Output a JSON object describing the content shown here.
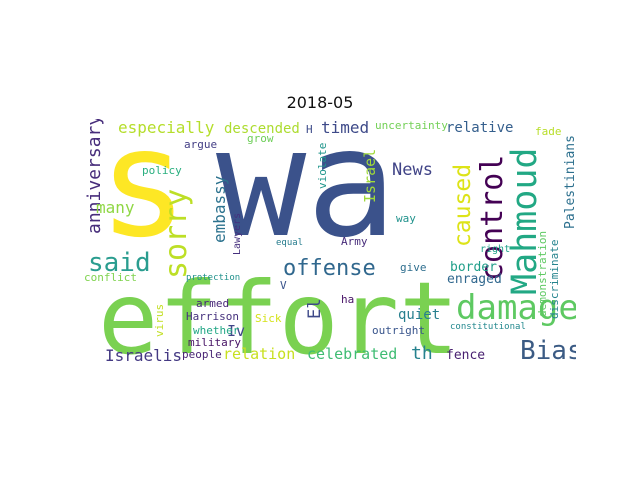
{
  "title": "2018-05",
  "words": [
    {
      "text": "wa",
      "color": "#3b528b",
      "rot": 0
    },
    {
      "text": "s",
      "color": "#fde725",
      "rot": 0
    },
    {
      "text": "effort",
      "color": "#7ad151",
      "rot": 0
    },
    {
      "text": "Mahmoud",
      "color": "#22a884",
      "rot": -90
    },
    {
      "text": "control",
      "color": "#440154",
      "rot": -90
    },
    {
      "text": "damage",
      "color": "#5ec962",
      "rot": 0
    },
    {
      "text": "sorry",
      "color": "#bddf26",
      "rot": -90
    },
    {
      "text": "said",
      "color": "#2a9d8f",
      "rot": 0
    },
    {
      "text": "offense",
      "color": "#31688e",
      "rot": 0
    },
    {
      "text": "Bias",
      "color": "#3b5b84",
      "rot": 0
    },
    {
      "text": "caused",
      "color": "#dde318",
      "rot": -90
    },
    {
      "text": "especially",
      "color": "#b5de2b",
      "rot": 0
    },
    {
      "text": "anniversary",
      "color": "#472d7b",
      "rot": -90
    },
    {
      "text": "many",
      "color": "#8fd744",
      "rot": 0
    },
    {
      "text": "embassy",
      "color": "#2c728e",
      "rot": -90
    },
    {
      "text": "Israel",
      "color": "#a0da39",
      "rot": -90
    },
    {
      "text": "News",
      "color": "#414487",
      "rot": 0
    },
    {
      "text": "timed",
      "color": "#3e4a89",
      "rot": 0
    },
    {
      "text": "descended",
      "color": "#addc30",
      "rot": 0
    },
    {
      "text": "relative",
      "color": "#355f8d",
      "rot": 0
    },
    {
      "text": "uncertainty",
      "color": "#73d056",
      "rot": 0
    },
    {
      "text": "Palestinians",
      "color": "#2d708e",
      "rot": -90
    },
    {
      "text": "demonstration",
      "color": "#5ec962",
      "rot": -90
    },
    {
      "text": "discriminate",
      "color": "#25848e",
      "rot": -90
    },
    {
      "text": "fade",
      "color": "#b8de29",
      "rot": 0
    },
    {
      "text": "Israelis",
      "color": "#443983",
      "rot": 0
    },
    {
      "text": "relation",
      "color": "#c8e020",
      "rot": 0
    },
    {
      "text": "celebrated",
      "color": "#3fbc73",
      "rot": 0
    },
    {
      "text": "th",
      "color": "#26828e",
      "rot": 0
    },
    {
      "text": "fence",
      "color": "#481f70",
      "rot": 0
    },
    {
      "text": "quiet",
      "color": "#277f8e",
      "rot": 0
    },
    {
      "text": "enraged",
      "color": "#31688e",
      "rot": 0
    },
    {
      "text": "border",
      "color": "#1f9e89",
      "rot": 0
    },
    {
      "text": "El",
      "color": "#3e4989",
      "rot": -90
    },
    {
      "text": "Iv",
      "color": "#404688",
      "rot": 0
    },
    {
      "text": "Harrison",
      "color": "#46327e",
      "rot": 0
    },
    {
      "text": "armed",
      "color": "#482878",
      "rot": 0
    },
    {
      "text": "military",
      "color": "#471365",
      "rot": 0
    },
    {
      "text": "whether",
      "color": "#21a685",
      "rot": 0
    },
    {
      "text": "people",
      "color": "#482475",
      "rot": 0
    },
    {
      "text": "virus",
      "color": "#c2df23",
      "rot": -90
    },
    {
      "text": "outright",
      "color": "#39558c",
      "rot": 0
    },
    {
      "text": "constitutional",
      "color": "#23888e",
      "rot": 0
    },
    {
      "text": "Army",
      "color": "#472c7a",
      "rot": 0
    },
    {
      "text": "give",
      "color": "#2e6e8e",
      "rot": 0
    },
    {
      "text": "ha",
      "color": "#481467",
      "rot": 0
    },
    {
      "text": "Sick",
      "color": "#d5e21a",
      "rot": 0
    },
    {
      "text": "V",
      "color": "#3a548c",
      "rot": 0
    },
    {
      "text": "argue",
      "color": "#433e85",
      "rot": 0
    },
    {
      "text": "policy",
      "color": "#29af7f",
      "rot": 0
    },
    {
      "text": "grow",
      "color": "#6ece58",
      "rot": 0
    },
    {
      "text": "H",
      "color": "#3e4c8a",
      "rot": 0
    },
    {
      "text": "violate",
      "color": "#1f958b",
      "rot": -90
    },
    {
      "text": "way",
      "color": "#20928c",
      "rot": 0
    },
    {
      "text": "equal",
      "color": "#287d8e",
      "rot": 0
    },
    {
      "text": "Lawyers",
      "color": "#46307e",
      "rot": -90
    },
    {
      "text": "protection",
      "color": "#21918c",
      "rot": 0
    },
    {
      "text": "conflict",
      "color": "#7fd34e",
      "rot": 0
    },
    {
      "text": "right",
      "color": "#1fa088",
      "rot": 0
    }
  ]
}
